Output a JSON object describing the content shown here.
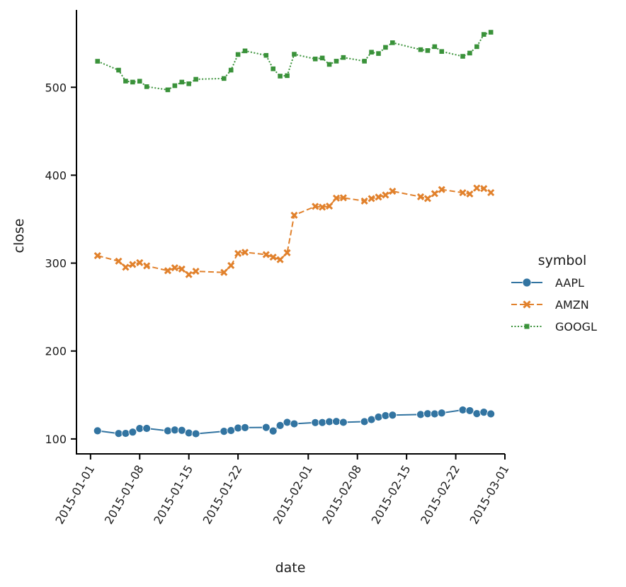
{
  "chart_data": {
    "type": "line",
    "xlabel": "date",
    "ylabel": "close",
    "x_type": "date",
    "xlim": [
      "2014-12-30",
      "2015-03-01"
    ],
    "ylim": [
      83,
      588
    ],
    "x_ticks": [
      "2015-01-01",
      "2015-01-08",
      "2015-01-15",
      "2015-01-22",
      "2015-02-01",
      "2015-02-08",
      "2015-02-15",
      "2015-02-22",
      "2015-03-01"
    ],
    "y_ticks": [
      100,
      200,
      300,
      400,
      500
    ],
    "grid": false,
    "legend": {
      "title": "symbol",
      "placement": "right"
    },
    "x": [
      "2015-01-02",
      "2015-01-05",
      "2015-01-06",
      "2015-01-07",
      "2015-01-08",
      "2015-01-09",
      "2015-01-12",
      "2015-01-13",
      "2015-01-14",
      "2015-01-15",
      "2015-01-16",
      "2015-01-20",
      "2015-01-21",
      "2015-01-22",
      "2015-01-23",
      "2015-01-26",
      "2015-01-27",
      "2015-01-28",
      "2015-01-29",
      "2015-01-30",
      "2015-02-02",
      "2015-02-03",
      "2015-02-04",
      "2015-02-05",
      "2015-02-06",
      "2015-02-09",
      "2015-02-10",
      "2015-02-11",
      "2015-02-12",
      "2015-02-13",
      "2015-02-17",
      "2015-02-18",
      "2015-02-19",
      "2015-02-20",
      "2015-02-23",
      "2015-02-24",
      "2015-02-25",
      "2015-02-26",
      "2015-02-27"
    ],
    "series": [
      {
        "name": "AAPL",
        "color": "#3274a1",
        "marker": "circle",
        "dash": "solid",
        "values": [
          109.3,
          106.2,
          106.3,
          107.8,
          111.9,
          112.0,
          109.3,
          110.2,
          109.8,
          106.8,
          105.9,
          108.7,
          109.6,
          112.4,
          112.9,
          113.1,
          109.1,
          115.3,
          118.9,
          117.2,
          118.6,
          118.7,
          119.6,
          119.9,
          118.9,
          119.7,
          122.0,
          124.9,
          126.5,
          127.1,
          127.8,
          128.7,
          128.5,
          129.5,
          133.0,
          132.2,
          128.8,
          130.4,
          128.5
        ]
      },
      {
        "name": "AMZN",
        "color": "#e1812c",
        "marker": "x",
        "dash": "dashed",
        "values": [
          308.5,
          302.2,
          295.3,
          298.4,
          300.5,
          296.9,
          291.4,
          294.7,
          293.3,
          286.9,
          290.7,
          289.4,
          297.3,
          311.0,
          312.3,
          309.7,
          306.8,
          303.9,
          311.8,
          354.5,
          364.5,
          363.6,
          364.8,
          373.9,
          374.3,
          370.6,
          373.4,
          375.1,
          377.4,
          381.8,
          375.4,
          373.4,
          379.0,
          383.7,
          380.1,
          378.6,
          385.4,
          384.8,
          380.2
        ]
      },
      {
        "name": "GOOGL",
        "color": "#3a923a",
        "marker": "square",
        "dash": "dotted",
        "values": [
          529.6,
          519.5,
          507.0,
          505.9,
          506.9,
          500.7,
          497.1,
          501.8,
          505.9,
          504.0,
          509.1,
          510.0,
          519.5,
          537.3,
          541.4,
          536.3,
          521.0,
          512.7,
          513.2,
          537.6,
          532.2,
          533.3,
          526.0,
          529.7,
          533.9,
          529.7,
          539.9,
          538.4,
          545.4,
          550.7,
          542.8,
          541.8,
          546.2,
          540.7,
          535.2,
          538.9,
          546.2,
          560.1,
          562.6
        ]
      }
    ]
  }
}
